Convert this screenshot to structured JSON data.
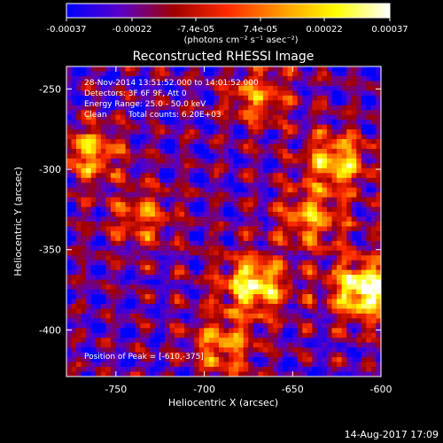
{
  "colorbar": {
    "tick_labels": [
      "-0.00037",
      "-0.00022",
      "-7.4e-05",
      "7.4e-05",
      "0.00022",
      "0.00037"
    ],
    "tick_values": [
      -0.00037,
      -0.00022,
      -7.4e-05,
      7.4e-05,
      0.00022,
      0.00037
    ],
    "range": [
      -0.00037,
      0.00037
    ],
    "unit_label": "(photons cm⁻² s⁻¹ asec⁻²)",
    "colormap_stops": [
      "#0000ff",
      "#5a00c8",
      "#a00000",
      "#ff2a00",
      "#ff9a00",
      "#ffff00",
      "#ffffff"
    ]
  },
  "chart_data": {
    "type": "heatmap",
    "title": "Reconstructed RHESSI Image",
    "xlabel": "Heliocentric X (arcsec)",
    "ylabel": "Heliocentric Y (arcsec)",
    "xlim": [
      -778,
      -600
    ],
    "ylim": [
      -429,
      -236
    ],
    "x_ticks": [
      -750,
      -700,
      -650,
      -600
    ],
    "x_tick_labels": [
      "-750",
      "-700",
      "-650",
      "-600"
    ],
    "y_ticks": [
      -250,
      -300,
      -350,
      -400
    ],
    "y_tick_labels": [
      "-250",
      "-300",
      "-350",
      "-400"
    ],
    "grid": false,
    "annotations": {
      "time_range": "28-Nov-2014 13:51:52.000 to 14:01:52.000",
      "detectors": "Detectors: 3F 6F 9F, Att 0",
      "energy_range": "Energy Range: 25.0 - 50.0 keV",
      "clean": "Clean",
      "total_counts": "Total counts: 6.20E+03",
      "peak": "Position of Peak = [-610,-375]"
    },
    "peak": {
      "x": -610,
      "y": -375
    },
    "bright_sources": [
      {
        "x": -610,
        "y": -375,
        "intensity": 1.0
      },
      {
        "x": -672,
        "y": -372,
        "intensity": 0.85
      },
      {
        "x": -625,
        "y": -295,
        "intensity": 0.7
      },
      {
        "x": -690,
        "y": -410,
        "intensity": 0.55
      },
      {
        "x": -765,
        "y": -290,
        "intensity": 0.6
      },
      {
        "x": -670,
        "y": -255,
        "intensity": 0.5
      },
      {
        "x": -735,
        "y": -330,
        "intensity": 0.45
      },
      {
        "x": -640,
        "y": -330,
        "intensity": 0.55
      }
    ]
  },
  "footer": {
    "timestamp": "14-Aug-2017 17:09"
  }
}
